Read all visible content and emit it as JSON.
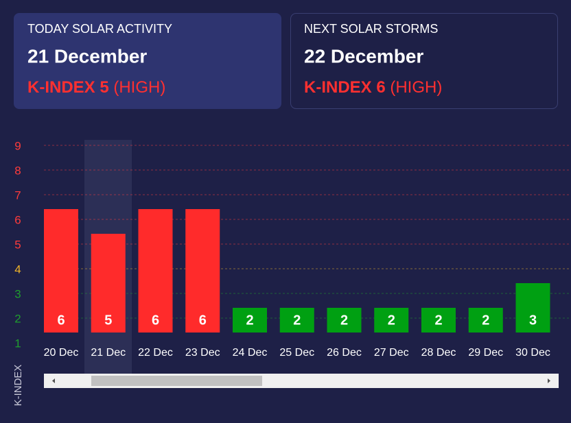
{
  "cards": [
    {
      "label": "TODAY SOLAR ACTIVITY",
      "date": "21 December",
      "index": "K-INDEX 5",
      "level": "(HIGH)"
    },
    {
      "label": "NEXT SOLAR STORMS",
      "date": "22 December",
      "index": "K-INDEX 6",
      "level": "(HIGH)"
    }
  ],
  "chart_data": {
    "type": "bar",
    "y_label": "K-INDEX",
    "categories": [
      "20 Dec",
      "21 Dec",
      "22 Dec",
      "23 Dec",
      "24 Dec",
      "25 Dec",
      "26 Dec",
      "27 Dec",
      "28 Dec",
      "29 Dec",
      "30 Dec"
    ],
    "values": [
      6,
      5,
      6,
      6,
      2,
      2,
      2,
      2,
      2,
      2,
      3
    ],
    "colors": [
      "#ff2b2b",
      "#ff2b2b",
      "#ff2b2b",
      "#ff2b2b",
      "#00a012",
      "#00a012",
      "#00a012",
      "#00a012",
      "#00a012",
      "#00a012",
      "#00a012"
    ],
    "ylim": [
      1,
      9
    ],
    "yticks": [
      1,
      2,
      3,
      4,
      5,
      6,
      7,
      8,
      9
    ],
    "ytick_colors": [
      "#1f9e2e",
      "#1f9e2e",
      "#1f9e2e",
      "#f0b429",
      "#ff3b3b",
      "#ff3b3b",
      "#ff3b3b",
      "#ff3b3b",
      "#ff3b3b"
    ],
    "grid": true
  }
}
